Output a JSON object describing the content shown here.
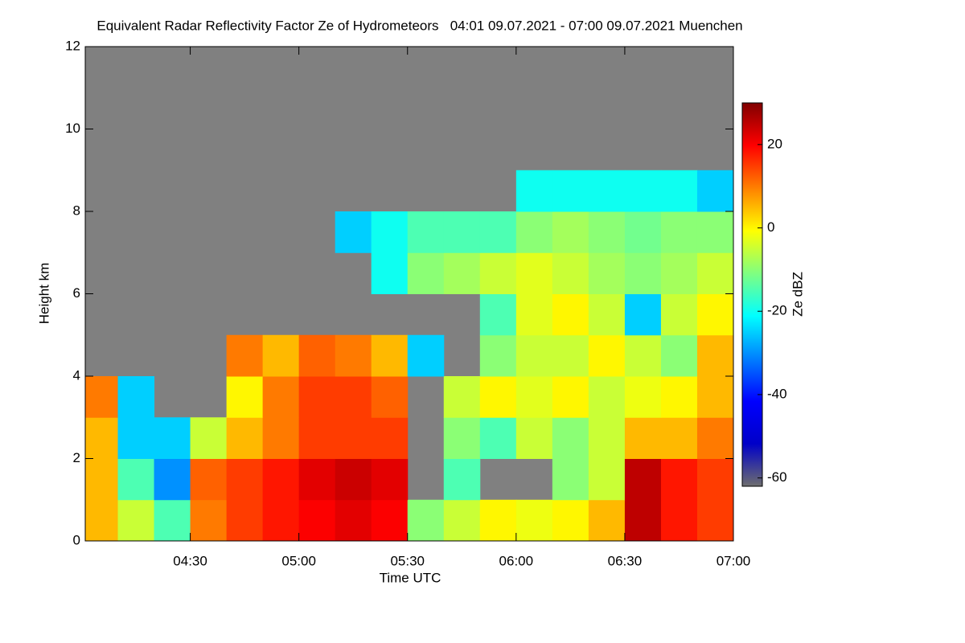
{
  "chart_data": {
    "type": "heatmap",
    "title": "Equivalent Radar Reflectivity Factor Ze of Hydrometeors   04:01 09.07.2021 - 07:00 09.07.2021 Muenchen",
    "xlabel": "Time UTC",
    "ylabel": "Height km",
    "colorbar_label": "Ze dBZ",
    "xlim": [
      4.0167,
      7.0
    ],
    "xticks": [
      {
        "value": 4.5,
        "label": "04:30"
      },
      {
        "value": 5.0,
        "label": "05:00"
      },
      {
        "value": 5.5,
        "label": "05:30"
      },
      {
        "value": 6.0,
        "label": "06:00"
      },
      {
        "value": 6.5,
        "label": "06:30"
      },
      {
        "value": 7.0,
        "label": "07:00"
      }
    ],
    "ylim": [
      0,
      12
    ],
    "yticks": [
      0,
      2,
      4,
      6,
      8,
      10,
      12
    ],
    "clim": [
      -62,
      30
    ],
    "cticks": [
      -60,
      -40,
      -20,
      0,
      20
    ],
    "colors": [
      "#6e6e6e",
      "#0000c8",
      "#0000ff",
      "#0080ff",
      "#00ffff",
      "#80ff80",
      "#ffff00",
      "#ff8000",
      "#ff0000",
      "#800000"
    ],
    "no_data_color": "#808080",
    "xbins": [
      4.0167,
      4.1667,
      4.3333,
      4.5,
      4.6667,
      4.8333,
      5.0,
      5.1667,
      5.3333,
      5.5,
      5.6667,
      5.8333,
      6.0,
      6.1667,
      6.3333,
      6.5,
      6.6667,
      6.8333,
      7.0
    ],
    "ybins": [
      0,
      1,
      2,
      3,
      4,
      5,
      6,
      7,
      8,
      9,
      10,
      11,
      12
    ],
    "z": [
      [
        5,
        -5,
        -15,
        10,
        15,
        18,
        20,
        22,
        20,
        -10,
        -5,
        0,
        -2,
        0,
        5,
        25,
        18,
        15
      ],
      [
        5,
        -15,
        -30,
        12,
        15,
        18,
        22,
        24,
        22,
        null,
        -15,
        null,
        null,
        -10,
        -5,
        25,
        18,
        15
      ],
      [
        5,
        -25,
        -25,
        -5,
        5,
        10,
        15,
        15,
        15,
        null,
        -10,
        -15,
        -5,
        -10,
        -5,
        5,
        5,
        10
      ],
      [
        10,
        -25,
        null,
        null,
        0,
        10,
        15,
        15,
        12,
        null,
        -5,
        0,
        -3,
        0,
        -5,
        -2,
        0,
        5
      ],
      [
        null,
        null,
        null,
        null,
        10,
        5,
        12,
        10,
        5,
        -25,
        null,
        -10,
        -5,
        -5,
        0,
        -5,
        -10,
        5
      ],
      [
        null,
        null,
        null,
        null,
        null,
        null,
        null,
        null,
        null,
        null,
        null,
        -15,
        -3,
        0,
        -5,
        -25,
        -5,
        0
      ],
      [
        null,
        null,
        null,
        null,
        null,
        null,
        null,
        null,
        -20,
        -10,
        -8,
        -5,
        -3,
        -5,
        -8,
        -10,
        -8,
        -5
      ],
      [
        null,
        null,
        null,
        null,
        null,
        null,
        null,
        -25,
        -20,
        -15,
        -15,
        -15,
        -10,
        -8,
        -10,
        -12,
        -10,
        -10
      ],
      [
        null,
        null,
        null,
        null,
        null,
        null,
        null,
        null,
        null,
        null,
        null,
        null,
        -20,
        -20,
        -20,
        -20,
        -20,
        -25
      ],
      [
        null,
        null,
        null,
        null,
        null,
        null,
        null,
        null,
        null,
        null,
        null,
        null,
        null,
        null,
        null,
        null,
        null,
        null
      ],
      [
        null,
        null,
        null,
        null,
        null,
        null,
        null,
        null,
        null,
        null,
        null,
        null,
        null,
        null,
        null,
        null,
        null,
        null
      ],
      [
        null,
        null,
        null,
        null,
        null,
        null,
        null,
        null,
        null,
        null,
        null,
        null,
        null,
        null,
        null,
        null,
        null,
        null
      ]
    ]
  }
}
